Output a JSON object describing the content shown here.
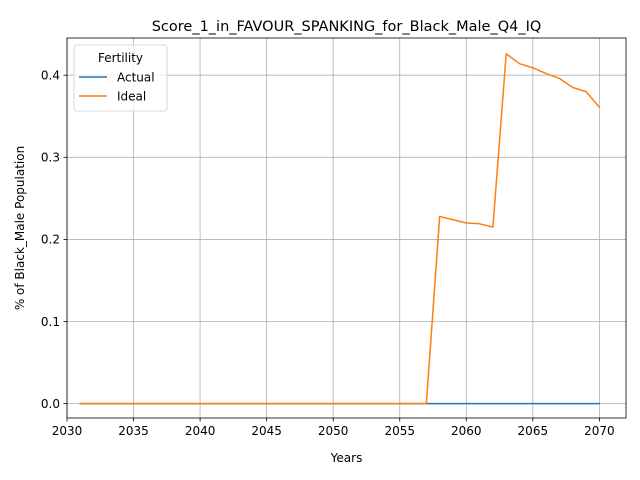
{
  "chart_data": {
    "type": "line",
    "title": "Score_1_in_FAVOUR_SPANKING_for_Black_Male_Q4_IQ",
    "xlabel": "Years",
    "ylabel": "% of Black_Male Population",
    "xlim": [
      2030.0,
      2072.0
    ],
    "ylim": [
      -0.0175,
      0.4453
    ],
    "xticks": [
      2030,
      2035,
      2040,
      2045,
      2050,
      2055,
      2060,
      2065,
      2070
    ],
    "yticks": [
      0.0,
      0.1,
      0.2,
      0.3,
      0.4
    ],
    "xtick_labels": [
      "2030",
      "2035",
      "2040",
      "2045",
      "2050",
      "2055",
      "2060",
      "2065",
      "2070"
    ],
    "ytick_labels": [
      "0.0",
      "0.1",
      "0.2",
      "0.3",
      "0.4"
    ],
    "grid": true,
    "legend": {
      "title": "Fertility",
      "position": "upper-left"
    },
    "series": [
      {
        "name": "Actual",
        "color": "#1f77b4",
        "x": [
          2031,
          2032,
          2033,
          2034,
          2035,
          2036,
          2037,
          2038,
          2039,
          2040,
          2041,
          2042,
          2043,
          2044,
          2045,
          2046,
          2047,
          2048,
          2049,
          2050,
          2051,
          2052,
          2053,
          2054,
          2055,
          2056,
          2057,
          2058,
          2059,
          2060,
          2061,
          2062,
          2063,
          2064,
          2065,
          2066,
          2067,
          2068,
          2069,
          2070
        ],
        "y": [
          0,
          0,
          0,
          0,
          0,
          0,
          0,
          0,
          0,
          0,
          0,
          0,
          0,
          0,
          0,
          0,
          0,
          0,
          0,
          0,
          0,
          0,
          0,
          0,
          0,
          0,
          0,
          0,
          0,
          0,
          0,
          0,
          0,
          0,
          0,
          0,
          0,
          0,
          0,
          0
        ]
      },
      {
        "name": "Ideal",
        "color": "#ff7f0e",
        "x": [
          2031,
          2032,
          2033,
          2034,
          2035,
          2036,
          2037,
          2038,
          2039,
          2040,
          2041,
          2042,
          2043,
          2044,
          2045,
          2046,
          2047,
          2048,
          2049,
          2050,
          2051,
          2052,
          2053,
          2054,
          2055,
          2056,
          2057,
          2058,
          2059,
          2060,
          2061,
          2062,
          2063,
          2064,
          2065,
          2066,
          2067,
          2068,
          2069,
          2070
        ],
        "y": [
          0,
          0,
          0,
          0,
          0,
          0,
          0,
          0,
          0,
          0,
          0,
          0,
          0,
          0,
          0,
          0,
          0,
          0,
          0,
          0,
          0,
          0,
          0,
          0,
          0,
          0,
          0,
          0.228,
          0.224,
          0.22,
          0.219,
          0.215,
          0.426,
          0.414,
          0.409,
          0.402,
          0.396,
          0.385,
          0.38,
          0.361
        ]
      }
    ]
  }
}
